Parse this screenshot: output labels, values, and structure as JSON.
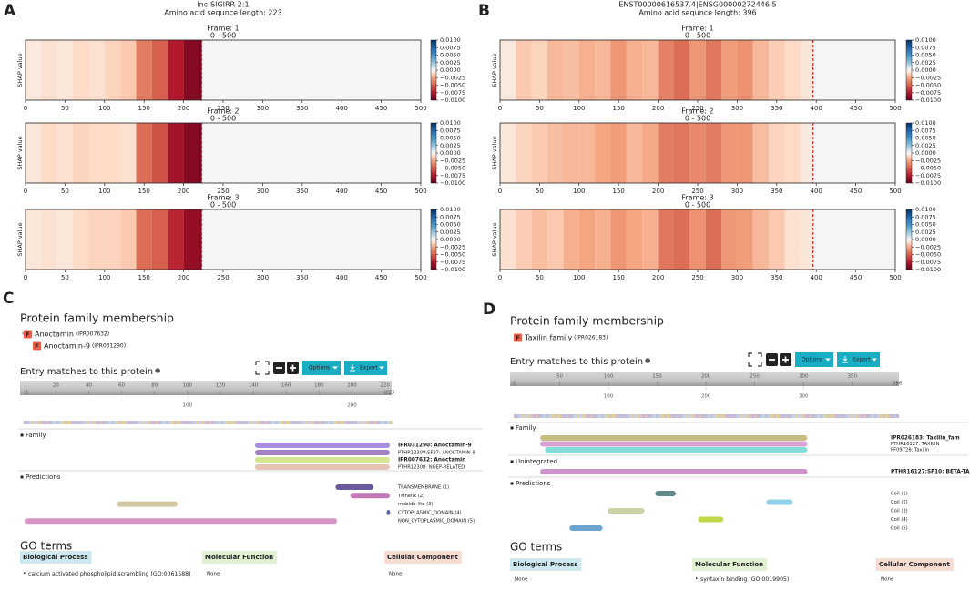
{
  "panels": {
    "A": {
      "label": "A",
      "title": "lnc-SIGIRR-2:1",
      "subtitle": "Amino acid sequnce length: 223",
      "length": 223,
      "ylabel": "SHAP value",
      "xlim": [
        0,
        500
      ],
      "xticks": [
        0,
        50,
        100,
        150,
        200,
        250,
        300,
        350,
        400,
        450,
        500
      ],
      "x": [
        0,
        20,
        40,
        60,
        80,
        100,
        120,
        140,
        160,
        180,
        200,
        220
      ],
      "frames": [
        {
          "title": "Frame: 1",
          "range": "0 - 500",
          "values": [
            -0.0005,
            -0.0008,
            -0.0006,
            -0.001,
            -0.0008,
            -0.0012,
            -0.0015,
            -0.004,
            -0.005,
            -0.0075,
            -0.009,
            -0.0095
          ]
        },
        {
          "title": "Frame: 2",
          "range": "0 - 500",
          "values": [
            -0.0006,
            -0.001,
            -0.0008,
            -0.0012,
            -0.001,
            -0.001,
            -0.0008,
            -0.0045,
            -0.0055,
            -0.008,
            -0.009,
            -0.0095
          ]
        },
        {
          "title": "Frame: 3",
          "range": "0 - 500",
          "values": [
            -0.0006,
            -0.0008,
            -0.0006,
            -0.001,
            -0.0012,
            -0.0012,
            -0.0015,
            -0.0045,
            -0.005,
            -0.007,
            -0.0085,
            -0.009
          ]
        }
      ],
      "colorbar": {
        "lim": [
          -0.01,
          0.01
        ],
        "ticks": [
          {
            "value": 0.01,
            "label": "0.0100"
          },
          {
            "value": 0.0075,
            "label": "0.0075"
          },
          {
            "value": 0.005,
            "label": "0.0050"
          },
          {
            "value": 0.0025,
            "label": "0.0025"
          },
          {
            "value": 0,
            "label": "0.0000"
          },
          {
            "value": -0.0025,
            "label": "−0.0025"
          },
          {
            "value": -0.005,
            "label": "−0.0050"
          },
          {
            "value": -0.0075,
            "label": "−0.0075"
          },
          {
            "value": -0.01,
            "label": "−0.0100"
          }
        ]
      }
    },
    "B": {
      "label": "B",
      "title": "ENST00000616537.4|ENSG00000272446.5",
      "subtitle": "Amino acid sequnce length: 396",
      "length": 396,
      "ylabel": "SHAP value",
      "xlim": [
        0,
        500
      ],
      "xticks": [
        0,
        50,
        100,
        150,
        200,
        250,
        300,
        350,
        400,
        450,
        500
      ],
      "x": [
        0,
        20,
        40,
        60,
        80,
        100,
        120,
        140,
        160,
        180,
        200,
        220,
        240,
        260,
        280,
        300,
        320,
        340,
        360,
        380
      ],
      "frames": [
        {
          "title": "Frame: 1",
          "range": "0 - 500",
          "values": [
            -0.0005,
            -0.0015,
            -0.0012,
            -0.002,
            -0.0018,
            -0.0022,
            -0.002,
            -0.003,
            -0.0022,
            -0.002,
            -0.0038,
            -0.0045,
            -0.003,
            -0.0042,
            -0.0028,
            -0.0032,
            -0.002,
            -0.0014,
            -0.001,
            -0.0006
          ]
        },
        {
          "title": "Frame: 2",
          "range": "0 - 500",
          "values": [
            -0.0006,
            -0.0012,
            -0.0015,
            -0.0018,
            -0.002,
            -0.002,
            -0.0025,
            -0.0028,
            -0.002,
            -0.0024,
            -0.004,
            -0.0042,
            -0.0035,
            -0.004,
            -0.003,
            -0.003,
            -0.0018,
            -0.0012,
            -0.001,
            -0.0005
          ]
        },
        {
          "title": "Frame: 3",
          "range": "0 - 500",
          "values": [
            -0.0008,
            -0.0014,
            -0.0018,
            -0.0015,
            -0.0022,
            -0.0025,
            -0.0022,
            -0.003,
            -0.0025,
            -0.0022,
            -0.0042,
            -0.0045,
            -0.0032,
            -0.0045,
            -0.003,
            -0.0028,
            -0.002,
            -0.0015,
            -0.0008,
            -0.0006
          ]
        }
      ],
      "colorbar": {
        "lim": [
          -0.01,
          0.01
        ],
        "ticks": [
          {
            "value": 0.01,
            "label": "0.0100"
          },
          {
            "value": 0.0075,
            "label": "0.0075"
          },
          {
            "value": 0.005,
            "label": "0.0050"
          },
          {
            "value": 0.0025,
            "label": "0.0025"
          },
          {
            "value": 0,
            "label": "0.0000"
          },
          {
            "value": -0.0025,
            "label": "−0.0025"
          },
          {
            "value": -0.005,
            "label": "−0.0050"
          },
          {
            "value": -0.0075,
            "label": "−0.0075"
          },
          {
            "value": -0.01,
            "label": "−0.0100"
          }
        ]
      }
    },
    "C": {
      "label": "C",
      "family_title": "Protein family membership",
      "family_tree": [
        {
          "name": "Anoctamin",
          "id": "(IPR007632)"
        },
        {
          "name": "Anoctamin-9",
          "id": "(IPR031290)"
        }
      ],
      "entry_title": "Entry matches to this protein",
      "buttons": [
        "Options",
        "Export"
      ],
      "length": 223,
      "ruler_ticks": [
        1,
        20,
        40,
        60,
        80,
        100,
        120,
        140,
        160,
        180,
        200,
        220,
        223
      ],
      "ruler2_ticks": [
        100,
        200
      ],
      "tracks": [
        {
          "name": "Family",
          "features": [
            {
              "label": "IPR031290: Anoctamin-9",
              "start": 141,
              "end": 223,
              "color": "#a98fe0"
            },
            {
              "label": "PTHR12308:SF37: ANOCTAMIN-9",
              "start": 141,
              "end": 223,
              "color": "#a381c4"
            },
            {
              "label": "IPR007632: Anoctamin",
              "start": 141,
              "end": 223,
              "color": "#d4e68f"
            },
            {
              "label": "PTHR12308: NGEP-RELATED",
              "start": 141,
              "end": 223,
              "color": "#e6c3b3"
            }
          ]
        },
        {
          "name": "Predictions",
          "features": [
            {
              "label": "TRANSMEMBRANE (1)",
              "start": 190,
              "end": 213,
              "color": "#6b5b9e"
            },
            {
              "label": "TMhelix (2)",
              "start": 199,
              "end": 223,
              "color": "#c27ab6"
            },
            {
              "label": "mobidb-lite (3)",
              "start": 57,
              "end": 94,
              "color": "#d2c9a3"
            },
            {
              "label": "CYTOPLASMIC_DOMAIN (4)",
              "start": 221,
              "end": 223,
              "color": "#5b6aa8"
            },
            {
              "label": "NON_CYTOPLASMIC_DOMAIN (5)",
              "start": 1,
              "end": 191,
              "color": "#d595c8"
            }
          ]
        }
      ],
      "go_title": "GO terms",
      "go": [
        {
          "title": "Biological Process",
          "items": [
            "calcium activated phospholipid scrambling (GO:0061588)"
          ]
        },
        {
          "title": "Molecular Function",
          "items": [
            "None"
          ]
        },
        {
          "title": "Cellular Component",
          "items": [
            "None"
          ]
        }
      ]
    },
    "D": {
      "label": "D",
      "family_title": "Protein family membership",
      "family_tree": [
        {
          "name": "Taxilin family",
          "id": "(IPR026183)"
        }
      ],
      "entry_title": "Entry matches to this protein",
      "buttons": [
        "Options",
        "Export"
      ],
      "length": 396,
      "ruler_ticks": [
        1,
        50,
        100,
        150,
        200,
        250,
        300,
        350,
        396
      ],
      "ruler2_ticks": [
        100,
        200,
        300
      ],
      "tracks": [
        {
          "name": "Family",
          "features": [
            {
              "label": "IPR026183: Taxilin_fam",
              "start": 30,
              "end": 304,
              "color": "#c8bd80"
            },
            {
              "label": "PTHR16127: TAXILIN",
              "start": 30,
              "end": 304,
              "color": "#d9a0d4"
            },
            {
              "label": "PF09728: Taxilin",
              "start": 35,
              "end": 304,
              "color": "#82dcd8"
            }
          ]
        },
        {
          "name": "Unintegrated",
          "features": [
            {
              "label": "PTHR16127:SF10: BETA-TAXILIN",
              "start": 30,
              "end": 304,
              "color": "#cf93cb"
            }
          ]
        },
        {
          "name": "Predictions",
          "features": [
            {
              "label": "Coil (1)",
              "start": 148,
              "end": 169,
              "color": "#5f8789"
            },
            {
              "label": "Coil (2)",
              "start": 262,
              "end": 289,
              "color": "#92cfe9"
            },
            {
              "label": "Coil (3)",
              "start": 99,
              "end": 137,
              "color": "#cdd1a6"
            },
            {
              "label": "Coil (4)",
              "start": 192,
              "end": 218,
              "color": "#c0d94b"
            },
            {
              "label": "Coil (5)",
              "start": 60,
              "end": 94,
              "color": "#6fa3cf"
            }
          ]
        }
      ],
      "go_title": "GO terms",
      "go": [
        {
          "title": "Biological Process",
          "items": [
            "None"
          ]
        },
        {
          "title": "Molecular Function",
          "items": [
            "syntaxin binding (GO:0019905)"
          ]
        },
        {
          "title": "Cellular Component",
          "items": [
            "None"
          ]
        }
      ]
    }
  }
}
